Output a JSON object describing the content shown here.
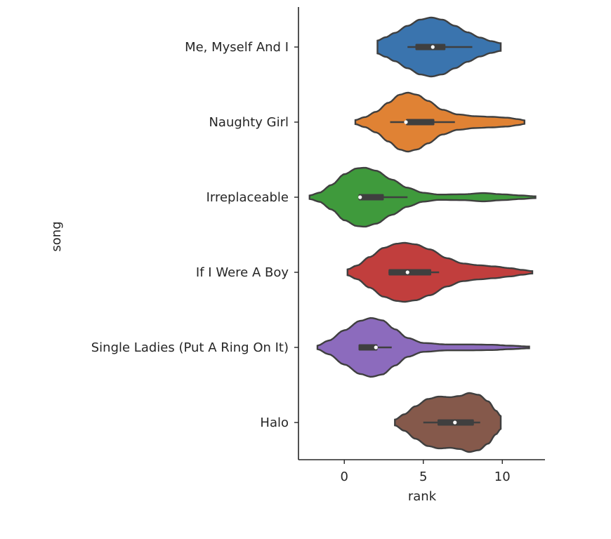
{
  "chart_data": {
    "type": "violin",
    "orientation": "horizontal",
    "xlabel": "rank",
    "ylabel": "song",
    "xlim": [
      -2.9,
      12.7
    ],
    "xticks": [
      0,
      5,
      10
    ],
    "grid": false,
    "legend": null,
    "categories": [
      "Me, Myself And I",
      "Naughty Girl",
      "Irreplaceable",
      "If I Were A Boy",
      "Single Ladies (Put A Ring On It)",
      "Halo"
    ],
    "colors": [
      "#3a74ae",
      "#e08234",
      "#3f9a3c",
      "#c13e3d",
      "#8c6bbd",
      "#85594b"
    ],
    "violins": [
      {
        "name": "Me, Myself And I",
        "min": 2.1,
        "q1": 4.5,
        "median": 5.6,
        "q3": 6.4,
        "max": 9.9,
        "whisker_low": 4.0,
        "whisker_high": 8.1,
        "density": [
          [
            2.1,
            0.22
          ],
          [
            2.6,
            0.33
          ],
          [
            3.2,
            0.48
          ],
          [
            4.0,
            0.72
          ],
          [
            4.8,
            0.93
          ],
          [
            5.5,
            1.0
          ],
          [
            6.2,
            0.93
          ],
          [
            7.0,
            0.72
          ],
          [
            7.8,
            0.5
          ],
          [
            8.6,
            0.32
          ],
          [
            9.3,
            0.2
          ],
          [
            9.9,
            0.13
          ]
        ]
      },
      {
        "name": "Naughty Girl",
        "min": 0.7,
        "q1": 3.9,
        "median": 3.9,
        "q3": 5.7,
        "max": 11.4,
        "whisker_low": 2.9,
        "whisker_high": 7.0,
        "density": [
          [
            0.7,
            0.07
          ],
          [
            1.3,
            0.17
          ],
          [
            2.0,
            0.35
          ],
          [
            2.8,
            0.66
          ],
          [
            3.5,
            0.93
          ],
          [
            4.0,
            1.0
          ],
          [
            4.6,
            0.93
          ],
          [
            5.3,
            0.72
          ],
          [
            6.2,
            0.42
          ],
          [
            7.2,
            0.26
          ],
          [
            8.3,
            0.2
          ],
          [
            9.3,
            0.18
          ],
          [
            10.3,
            0.15
          ],
          [
            11.0,
            0.1
          ],
          [
            11.4,
            0.06
          ]
        ]
      },
      {
        "name": "Irreplaceable",
        "min": -2.2,
        "q1": 0.9,
        "median": 1.0,
        "q3": 2.5,
        "max": 12.1,
        "whisker_low": 0.9,
        "whisker_high": 4.0,
        "density": [
          [
            -2.2,
            0.06
          ],
          [
            -1.6,
            0.15
          ],
          [
            -0.8,
            0.42
          ],
          [
            0.0,
            0.78
          ],
          [
            0.8,
            0.98
          ],
          [
            1.3,
            1.0
          ],
          [
            2.0,
            0.9
          ],
          [
            3.0,
            0.6
          ],
          [
            4.0,
            0.32
          ],
          [
            5.0,
            0.15
          ],
          [
            6.0,
            0.09
          ],
          [
            7.5,
            0.1
          ],
          [
            8.8,
            0.14
          ],
          [
            10.0,
            0.1
          ],
          [
            11.2,
            0.06
          ],
          [
            12.1,
            0.03
          ]
        ]
      },
      {
        "name": "If I Were A Boy",
        "min": 0.2,
        "q1": 2.8,
        "median": 4.0,
        "q3": 5.5,
        "max": 11.9,
        "whisker_low": 2.8,
        "whisker_high": 6.0,
        "density": [
          [
            0.2,
            0.1
          ],
          [
            0.8,
            0.23
          ],
          [
            1.6,
            0.52
          ],
          [
            2.5,
            0.83
          ],
          [
            3.3,
            0.97
          ],
          [
            3.8,
            1.0
          ],
          [
            4.5,
            0.95
          ],
          [
            5.4,
            0.78
          ],
          [
            6.5,
            0.48
          ],
          [
            7.5,
            0.3
          ],
          [
            8.5,
            0.24
          ],
          [
            9.5,
            0.2
          ],
          [
            10.5,
            0.14
          ],
          [
            11.3,
            0.08
          ],
          [
            11.9,
            0.04
          ]
        ]
      },
      {
        "name": "Single Ladies (Put A Ring On It)",
        "min": -1.7,
        "q1": 0.9,
        "median": 2.0,
        "q3": 2.1,
        "max": 11.7,
        "whisker_low": 0.9,
        "whisker_high": 3.0,
        "density": [
          [
            -1.7,
            0.06
          ],
          [
            -1.0,
            0.23
          ],
          [
            0.0,
            0.58
          ],
          [
            1.0,
            0.9
          ],
          [
            1.7,
            1.0
          ],
          [
            2.4,
            0.92
          ],
          [
            3.2,
            0.62
          ],
          [
            4.0,
            0.32
          ],
          [
            5.0,
            0.15
          ],
          [
            6.5,
            0.1
          ],
          [
            8.0,
            0.1
          ],
          [
            9.3,
            0.09
          ],
          [
            10.5,
            0.06
          ],
          [
            11.7,
            0.03
          ]
        ]
      },
      {
        "name": "Halo",
        "min": 3.2,
        "q1": 5.9,
        "median": 7.0,
        "q3": 8.2,
        "max": 9.9,
        "whisker_low": 5.0,
        "whisker_high": 8.6,
        "density": [
          [
            3.2,
            0.1
          ],
          [
            3.8,
            0.28
          ],
          [
            4.5,
            0.55
          ],
          [
            5.3,
            0.8
          ],
          [
            6.0,
            0.88
          ],
          [
            6.7,
            0.86
          ],
          [
            7.3,
            0.9
          ],
          [
            7.9,
            1.0
          ],
          [
            8.5,
            0.94
          ],
          [
            9.1,
            0.72
          ],
          [
            9.6,
            0.4
          ],
          [
            9.9,
            0.22
          ]
        ]
      }
    ]
  }
}
